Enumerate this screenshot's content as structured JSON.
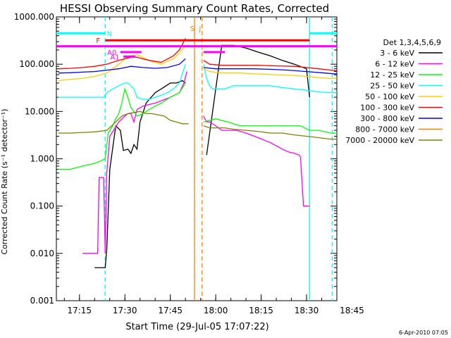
{
  "chart_data": {
    "type": "line",
    "title": "HESSI Observing Summary Count Rates, Corrected",
    "xlabel": "Start Time (29-Jul-05 17:07:22)",
    "ylabel": "Corrected Count Rate (s⁻¹ detector⁻¹)",
    "y_scale": "log",
    "ylim": [
      0.001,
      1000
    ],
    "xlim_minutes": [
      7.37,
      100.0
    ],
    "x_ticks": [
      {
        "t": 15,
        "label": "17:15"
      },
      {
        "t": 30,
        "label": "17:30"
      },
      {
        "t": 45,
        "label": "17:45"
      },
      {
        "t": 60,
        "label": "18:00"
      },
      {
        "t": 75,
        "label": "18:15"
      },
      {
        "t": 90,
        "label": "18:30"
      },
      {
        "t": 105,
        "label": "18:45"
      }
    ],
    "y_ticks": [
      {
        "v": 1000,
        "label": "1000.000"
      },
      {
        "v": 100,
        "label": "100.000"
      },
      {
        "v": 10,
        "label": "10.000"
      },
      {
        "v": 1,
        "label": "1.000"
      },
      {
        "v": 0.1,
        "label": "0.100"
      },
      {
        "v": 0.01,
        "label": "0.010"
      },
      {
        "v": 0.001,
        "label": "0.001"
      }
    ],
    "legend_title": "Det 1,3,4,5,6,9",
    "legend_placement": "right",
    "series": [
      {
        "name": "3 - 6 keV",
        "color": "#000000",
        "x": [
          20,
          22.5,
          23,
          23.5,
          24,
          25,
          27,
          28.5,
          29.5,
          31,
          32,
          33,
          34,
          35,
          37,
          40,
          42,
          45,
          47,
          49,
          50,
          51,
          52,
          53,
          54,
          56,
          57,
          62,
          66,
          70,
          74,
          78,
          82,
          86,
          90,
          91
        ],
        "y": [
          0.005,
          0.005,
          0.005,
          0.005,
          0.012,
          0.6,
          5,
          4,
          1.5,
          1.6,
          1.3,
          2,
          1.6,
          6,
          15,
          25,
          30,
          40,
          40,
          45,
          40,
          null,
          null,
          null,
          null,
          null,
          1.2,
          250,
          250,
          220,
          180,
          150,
          120,
          100,
          80,
          20
        ]
      },
      {
        "name": "6 - 12 keV",
        "color": "#ff00ff",
        "x": [
          16,
          18,
          20,
          21,
          21.5,
          22,
          23,
          23.5,
          24,
          25,
          28,
          30,
          31,
          32,
          33,
          34,
          36,
          38,
          40,
          45,
          48,
          49.5,
          50.5,
          54,
          56,
          57,
          58,
          60,
          62,
          64,
          67,
          70,
          74,
          78,
          82,
          84,
          86,
          87.5,
          88,
          89,
          90,
          91
        ],
        "y": [
          0.01,
          0.01,
          0.01,
          0.01,
          0.4,
          0.4,
          0.4,
          0.01,
          0.5,
          3,
          6,
          8,
          9,
          9,
          6,
          11,
          13,
          14,
          15,
          20,
          25,
          40,
          70,
          null,
          8,
          6,
          6,
          5,
          4,
          4,
          4,
          3.5,
          2.8,
          2.2,
          1.6,
          1.4,
          1.3,
          1.2,
          1.1,
          0.1,
          0.1,
          0.1
        ]
      },
      {
        "name": "12 - 25 keV",
        "color": "#00ff00",
        "x": [
          8,
          12,
          16,
          20,
          22,
          23.5,
          24.5,
          26,
          27,
          28,
          29,
          30,
          31,
          32,
          33,
          34,
          36,
          38,
          40,
          42,
          45,
          48,
          50,
          53,
          56,
          60,
          64,
          68,
          72,
          76,
          80,
          84,
          88,
          91,
          94,
          98,
          100
        ],
        "y": [
          0.6,
          0.6,
          0.7,
          0.8,
          0.9,
          1.0,
          3.5,
          5,
          7,
          9,
          15,
          30,
          20,
          12,
          10,
          8,
          9,
          11,
          13,
          15,
          20,
          25,
          40,
          null,
          6,
          7,
          6,
          5,
          5,
          5,
          5,
          5,
          5,
          4,
          4,
          3.5,
          3.5
        ]
      },
      {
        "name": "25 - 50 keV",
        "color": "#00ffff",
        "x": [
          8,
          12,
          16,
          20,
          23,
          24,
          26,
          28,
          30,
          31,
          32,
          33,
          34,
          36,
          38,
          40,
          42,
          44,
          46,
          48,
          50,
          53,
          56,
          57,
          58,
          59,
          60,
          63,
          66,
          70,
          74,
          78,
          82,
          86,
          90,
          94,
          98,
          100
        ],
        "y": [
          20,
          20,
          20,
          20,
          20,
          25,
          30,
          35,
          40,
          40,
          35,
          30,
          20,
          18,
          18,
          20,
          22,
          25,
          30,
          40,
          100,
          null,
          100,
          50,
          35,
          30,
          30,
          30,
          35,
          35,
          35,
          35,
          32,
          30,
          28,
          26,
          25,
          25
        ]
      },
      {
        "name": "50 - 100 keV",
        "color": "#ffcc00",
        "x": [
          8,
          12,
          16,
          20,
          24,
          26,
          28,
          30,
          32,
          34,
          38,
          42,
          46,
          48,
          50,
          53,
          56,
          58,
          62,
          68,
          74,
          80,
          86,
          90,
          94,
          98,
          100
        ],
        "y": [
          45,
          48,
          50,
          55,
          65,
          80,
          100,
          130,
          150,
          160,
          120,
          100,
          130,
          170,
          250,
          null,
          80,
          70,
          65,
          65,
          62,
          60,
          58,
          55,
          52,
          50,
          50
        ]
      },
      {
        "name": "100 - 300 keV",
        "color": "#ff0000",
        "x": [
          8,
          12,
          16,
          20,
          24,
          26,
          28,
          30,
          32,
          34,
          38,
          42,
          46,
          48,
          50,
          53,
          56,
          58,
          62,
          68,
          74,
          80,
          86,
          90,
          94,
          98,
          100
        ],
        "y": [
          80,
          82,
          85,
          90,
          100,
          110,
          120,
          130,
          140,
          140,
          120,
          110,
          150,
          200,
          350,
          null,
          120,
          100,
          95,
          95,
          95,
          92,
          90,
          85,
          80,
          75,
          72
        ]
      },
      {
        "name": "300 - 800 keV",
        "color": "#0000ff",
        "x": [
          8,
          12,
          16,
          20,
          24,
          28,
          32,
          36,
          40,
          44,
          48,
          50,
          53,
          56,
          60,
          66,
          72,
          78,
          84,
          90,
          96,
          100
        ],
        "y": [
          65,
          66,
          68,
          70,
          75,
          80,
          90,
          85,
          82,
          85,
          100,
          130,
          null,
          85,
          80,
          80,
          80,
          78,
          75,
          70,
          65,
          62
        ]
      },
      {
        "name": "800 - 7000 keV",
        "color": "#ff8000",
        "x": [
          8,
          20,
          40,
          53,
          56,
          60,
          80,
          100
        ],
        "y": [
          null,
          null,
          null,
          null,
          null,
          null,
          null,
          null
        ]
      },
      {
        "name": "7000 - 20000 keV",
        "color": "#808000",
        "x": [
          8,
          12,
          16,
          20,
          24,
          27,
          29,
          31,
          33,
          35,
          37,
          39,
          41,
          43,
          45,
          47,
          49,
          51,
          53,
          56,
          58,
          60,
          63,
          66,
          70,
          74,
          78,
          82,
          86,
          90,
          94,
          98,
          100
        ],
        "y": [
          3.5,
          3.5,
          3.6,
          3.7,
          4,
          6,
          8,
          9,
          9.5,
          10,
          9,
          9,
          8.5,
          8,
          6.5,
          6,
          5.5,
          5.5,
          null,
          5,
          4.5,
          4.5,
          4.5,
          4.2,
          4,
          3.8,
          3.5,
          3.5,
          3.2,
          3,
          2.8,
          2.6,
          2.6
        ]
      }
    ],
    "intervals": [
      {
        "label": "N",
        "color": "#00ffff",
        "start": 7.37,
        "end": 23.5,
        "value": 450
      },
      {
        "label": "",
        "color": "#00ffff",
        "start": 91.0,
        "end": 100.0,
        "value": 450
      },
      {
        "label": "F",
        "color": "#ff0000",
        "start": 23.5,
        "end": 91.0,
        "value": 320
      },
      {
        "label": "",
        "color": "#ff00ff",
        "start": 7.37,
        "end": 100.0,
        "value": 240
      },
      {
        "label": "A0",
        "color": "#ff00ff",
        "start": 28.5,
        "end": 35.5,
        "value": 180
      },
      {
        "label": "A1",
        "color": "#ff00ff",
        "start": 29.5,
        "end": 33.5,
        "value": 145
      },
      {
        "label": "",
        "color": "#ff00ff",
        "start": 56.0,
        "end": 63.0,
        "value": 180
      }
    ],
    "vlines": [
      {
        "t": 23.5,
        "color": "#00ffff",
        "style": "dashed"
      },
      {
        "t": 91.0,
        "color": "#00ffff",
        "style": "solid"
      },
      {
        "t": 98.5,
        "color": "#00ffff",
        "style": "dashed"
      },
      {
        "t": 53.0,
        "color": "#ff8000",
        "style": "solid"
      },
      {
        "t": 55.5,
        "color": "#ff8000",
        "style": "dashed"
      }
    ],
    "vline_labels": [
      {
        "t": 53.0,
        "label": "S",
        "color": "#ff8000"
      },
      {
        "t": 55.5,
        "label": "J",
        "color": "#ff8000"
      }
    ],
    "footer": "6-Apr-2010 07:05"
  }
}
